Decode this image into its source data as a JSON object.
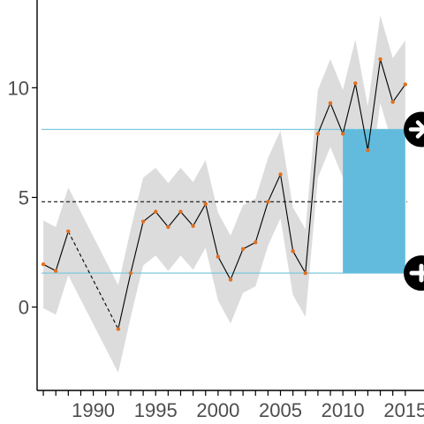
{
  "chart_data": {
    "type": "line",
    "title": "",
    "xlabel": "",
    "ylabel": "",
    "xlim": [
      1985.5,
      2016.5
    ],
    "ylim": [
      -3.8,
      14.0
    ],
    "x_ticks": [
      1990,
      1995,
      2000,
      2005,
      2010,
      2015
    ],
    "x_tick_labels": [
      "1990",
      "1995",
      "2000",
      "2005",
      "2010",
      "2015"
    ],
    "x_minor_ticks": [
      1986,
      1987,
      1988,
      1989,
      1990,
      1991,
      1992,
      1993,
      1994,
      1995,
      1996,
      1997,
      1998,
      1999,
      2000,
      2001,
      2002,
      2003,
      2004,
      2005,
      2006,
      2007,
      2008,
      2009,
      2010,
      2011,
      2012,
      2013,
      2014,
      2015
    ],
    "y_ticks": [
      0,
      5,
      10
    ],
    "y_tick_labels": [
      "0",
      "5",
      "10"
    ],
    "grid": false,
    "series": [
      {
        "x": [
          1986,
          1987,
          1988,
          1992,
          1993,
          1994,
          1995,
          1996,
          1997,
          1998,
          1999,
          2000,
          2001,
          2002,
          2003,
          2004,
          2005,
          2006,
          2007,
          2008,
          2009,
          2010,
          2011,
          2012,
          2013,
          2014,
          2015
        ],
        "y": [
          1.95,
          1.65,
          3.45,
          -1.0,
          1.55,
          3.9,
          4.35,
          3.65,
          4.35,
          3.7,
          4.7,
          2.3,
          1.25,
          2.65,
          2.95,
          4.8,
          6.05,
          2.55,
          1.55,
          7.9,
          9.3,
          7.9,
          10.2,
          7.15,
          11.3,
          9.35,
          10.15
        ],
        "dashed_gap": [
          1988,
          1992
        ],
        "line_color": "#000000",
        "point_color": "#e07020"
      }
    ],
    "band": {
      "half_width": 2.0,
      "color": "#dcdcdc"
    },
    "reference_lines": {
      "mean": 4.8,
      "mean_color": "#333333",
      "upper": 8.1,
      "lower": 1.55,
      "limit_color": "#7ec8dc"
    },
    "highlight": {
      "x_start": 2010,
      "x_end": 2015,
      "y_low": 1.55,
      "y_high": 8.1,
      "color": "#62bbdd"
    },
    "trend_indicators": [
      {
        "icon": "arrow-right-circle-icon",
        "y": 8.1,
        "color": "#000000"
      },
      {
        "icon": "plus-circle-icon",
        "y": 1.55,
        "color": "#000000"
      }
    ]
  }
}
